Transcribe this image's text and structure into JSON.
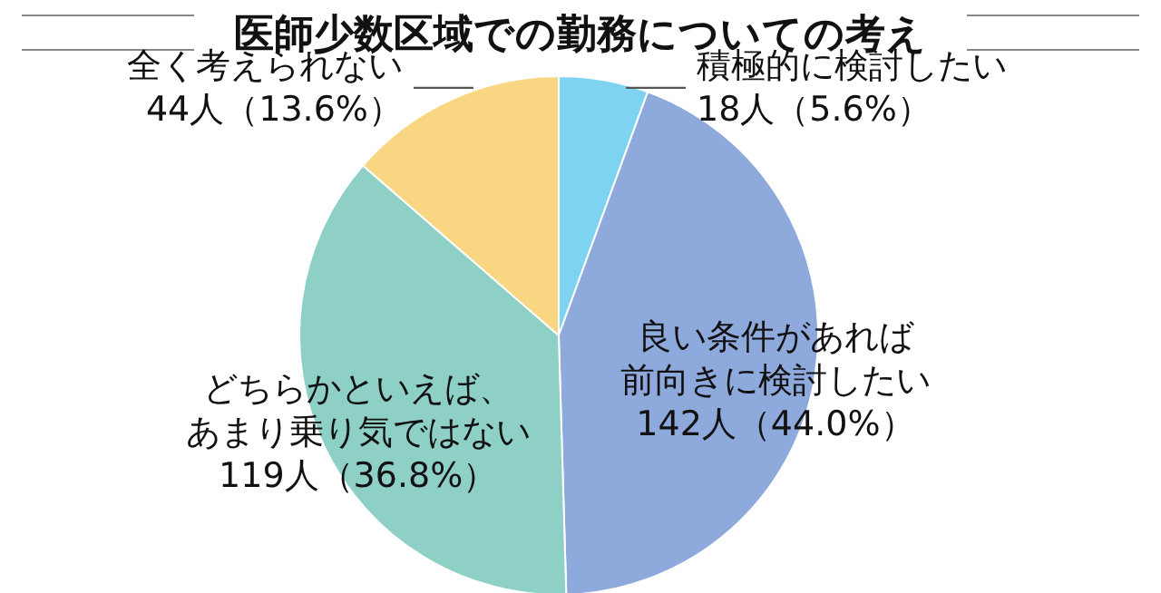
{
  "chart_data": {
    "type": "pie",
    "title": "医師少数区域での勤務についての考え",
    "categories": [
      "積極的に検討したい",
      "良い条件があれば前向きに検討したい",
      "どちらかといえば、あまり乗り気ではない",
      "全く考えられない"
    ],
    "values": [
      18,
      142,
      119,
      44
    ],
    "value_labels": [
      "18人（5.6%）",
      "142人（44.0%）",
      "119人（36.8%）",
      "44人（13.6%）"
    ],
    "colors": [
      "#7fd3f2",
      "#8ea9dc",
      "#8fd0c6",
      "#f8d682"
    ]
  }
}
